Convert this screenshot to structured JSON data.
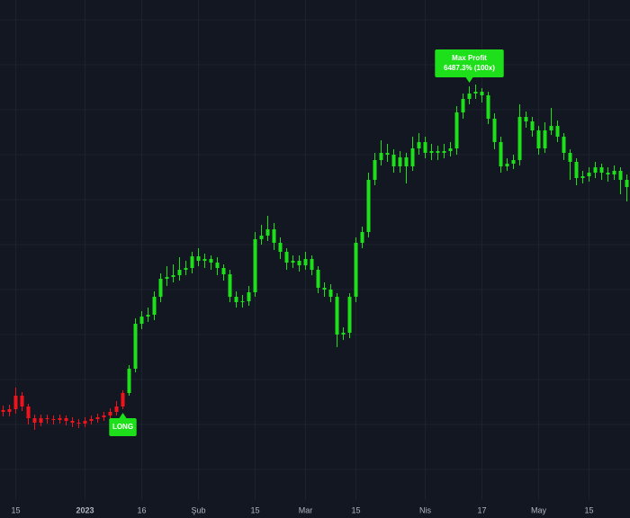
{
  "chart_data": {
    "type": "candlestick",
    "categories": [
      null,
      null,
      "15",
      null,
      null,
      null,
      null,
      null,
      null,
      null,
      null,
      null,
      null,
      "2023",
      null,
      null,
      null,
      null,
      null,
      null,
      null,
      null,
      "16",
      null,
      null,
      null,
      null,
      null,
      null,
      null,
      null,
      "Şub",
      null,
      null,
      null,
      null,
      null,
      null,
      null,
      null,
      "15",
      null,
      null,
      null,
      null,
      null,
      null,
      null,
      "Mar",
      null,
      null,
      null,
      null,
      null,
      null,
      null,
      "15",
      null,
      null,
      null,
      null,
      null,
      null,
      null,
      null,
      null,
      null,
      "Nis",
      null,
      null,
      null,
      null,
      null,
      null,
      null,
      null,
      "17",
      null,
      null,
      null,
      null,
      null,
      null,
      null,
      null,
      "May",
      null,
      null,
      null,
      null,
      null,
      null,
      null,
      "15",
      null,
      null,
      null,
      null,
      null,
      null
    ],
    "open": [
      120,
      118,
      121,
      136,
      124,
      111,
      106,
      111,
      110,
      109,
      111,
      108,
      106,
      105,
      108,
      110,
      112,
      114,
      118,
      124,
      139,
      166,
      216,
      224,
      226,
      246,
      266,
      268,
      270,
      276,
      278,
      291,
      286,
      288,
      284,
      278,
      271,
      246,
      240,
      241,
      251,
      310,
      314,
      321,
      306,
      296,
      284,
      286,
      281,
      288,
      276,
      256,
      254,
      246,
      204,
      206,
      246,
      306,
      318,
      376,
      398,
      406,
      404,
      391,
      401,
      391,
      411,
      418,
      406,
      408,
      406,
      408,
      411,
      451,
      466,
      472,
      474,
      470,
      444,
      418,
      391,
      394,
      398,
      446,
      441,
      431,
      411,
      431,
      436,
      424,
      406,
      396,
      378,
      380,
      384,
      390,
      384,
      382,
      386,
      376
    ],
    "high": [
      125,
      126,
      145,
      140,
      127,
      115,
      115,
      115,
      114,
      115,
      114,
      112,
      110,
      112,
      114,
      116,
      118,
      122,
      130,
      142,
      170,
      222,
      230,
      234,
      252,
      272,
      280,
      282,
      290,
      286,
      296,
      300,
      294,
      292,
      290,
      282,
      276,
      252,
      248,
      258,
      318,
      326,
      336,
      328,
      312,
      300,
      292,
      292,
      296,
      292,
      280,
      262,
      260,
      250,
      212,
      250,
      312,
      324,
      384,
      406,
      420,
      416,
      410,
      408,
      406,
      424,
      428,
      424,
      416,
      414,
      416,
      418,
      458,
      472,
      480,
      482,
      478,
      474,
      450,
      424,
      400,
      404,
      460,
      452,
      446,
      436,
      440,
      456,
      442,
      428,
      410,
      400,
      386,
      390,
      396,
      394,
      390,
      392,
      390,
      382
    ],
    "low": [
      113,
      113,
      116,
      119,
      104,
      98,
      102,
      105,
      104,
      105,
      103,
      101,
      100,
      101,
      104,
      106,
      108,
      110,
      114,
      121,
      136,
      162,
      210,
      218,
      220,
      240,
      258,
      262,
      264,
      270,
      272,
      280,
      278,
      276,
      270,
      264,
      240,
      234,
      234,
      236,
      246,
      304,
      308,
      298,
      288,
      276,
      278,
      274,
      276,
      270,
      250,
      246,
      240,
      190,
      198,
      200,
      240,
      300,
      312,
      370,
      392,
      396,
      384,
      384,
      372,
      386,
      404,
      400,
      398,
      398,
      400,
      402,
      404,
      444,
      460,
      466,
      462,
      438,
      410,
      384,
      386,
      388,
      392,
      434,
      424,
      404,
      406,
      426,
      418,
      398,
      376,
      370,
      372,
      374,
      378,
      376,
      374,
      376,
      360,
      352
    ],
    "close": [
      118,
      121,
      136,
      124,
      111,
      106,
      111,
      110,
      109,
      111,
      108,
      106,
      105,
      108,
      110,
      112,
      114,
      118,
      124,
      139,
      166,
      216,
      224,
      226,
      246,
      266,
      268,
      270,
      276,
      278,
      291,
      286,
      288,
      284,
      278,
      271,
      246,
      240,
      241,
      251,
      310,
      314,
      321,
      306,
      296,
      284,
      286,
      281,
      288,
      276,
      256,
      254,
      246,
      204,
      206,
      246,
      306,
      318,
      376,
      398,
      406,
      404,
      391,
      401,
      391,
      411,
      418,
      406,
      408,
      406,
      408,
      411,
      451,
      466,
      472,
      474,
      470,
      444,
      418,
      391,
      394,
      398,
      446,
      441,
      431,
      411,
      431,
      436,
      424,
      406,
      396,
      378,
      380,
      384,
      390,
      384,
      382,
      386,
      376,
      368
    ],
    "colors": [
      "#f0131b",
      "#f0131b",
      "#f0131b",
      "#f0131b",
      "#f0131b",
      "#f0131b",
      "#f0131b",
      "#f0131b",
      "#f0131b",
      "#f0131b",
      "#f0131b",
      "#f0131b",
      "#f0131b",
      "#f0131b",
      "#f0131b",
      "#f0131b",
      "#f0131b",
      "#f0131b",
      "#f0131b",
      "#f0131b",
      "#1ee01a",
      "#1ee01a",
      "#1ee01a",
      "#1ee01a",
      "#1ee01a",
      "#1ee01a",
      "#1ee01a",
      "#1ee01a",
      "#1ee01a",
      "#1ee01a",
      "#1ee01a",
      "#1ee01a",
      "#1ee01a",
      "#1ee01a",
      "#1ee01a",
      "#1ee01a",
      "#1ee01a",
      "#1ee01a",
      "#1ee01a",
      "#1ee01a",
      "#1ee01a",
      "#1ee01a",
      "#1ee01a",
      "#1ee01a",
      "#1ee01a",
      "#1ee01a",
      "#1ee01a",
      "#1ee01a",
      "#1ee01a",
      "#1ee01a",
      "#1ee01a",
      "#1ee01a",
      "#1ee01a",
      "#1ee01a",
      "#1ee01a",
      "#1ee01a",
      "#1ee01a",
      "#1ee01a",
      "#1ee01a",
      "#1ee01a",
      "#1ee01a",
      "#1ee01a",
      "#1ee01a",
      "#1ee01a",
      "#1ee01a",
      "#1ee01a",
      "#1ee01a",
      "#1ee01a",
      "#1ee01a",
      "#1ee01a",
      "#1ee01a",
      "#1ee01a",
      "#1ee01a",
      "#1ee01a",
      "#1ee01a",
      "#1ee01a",
      "#1ee01a",
      "#1ee01a",
      "#1ee01a",
      "#1ee01a",
      "#1ee01a",
      "#1ee01a",
      "#1ee01a",
      "#1ee01a",
      "#1ee01a",
      "#1ee01a",
      "#1ee01a",
      "#1ee01a",
      "#1ee01a",
      "#1ee01a",
      "#1ee01a",
      "#1ee01a",
      "#1ee01a",
      "#1ee01a",
      "#1ee01a",
      "#1ee01a",
      "#1ee01a",
      "#1ee01a",
      "#1ee01a",
      "#1ee01a"
    ],
    "ylim": [
      0,
      576
    ],
    "annotations": [
      {
        "index": 74,
        "lines": [
          "Max Profit",
          "6487.3% (100x)"
        ],
        "color": "#1ee01a"
      },
      {
        "index": 19,
        "lines": [
          "LONG"
        ],
        "color": "#1ee01a"
      }
    ]
  }
}
